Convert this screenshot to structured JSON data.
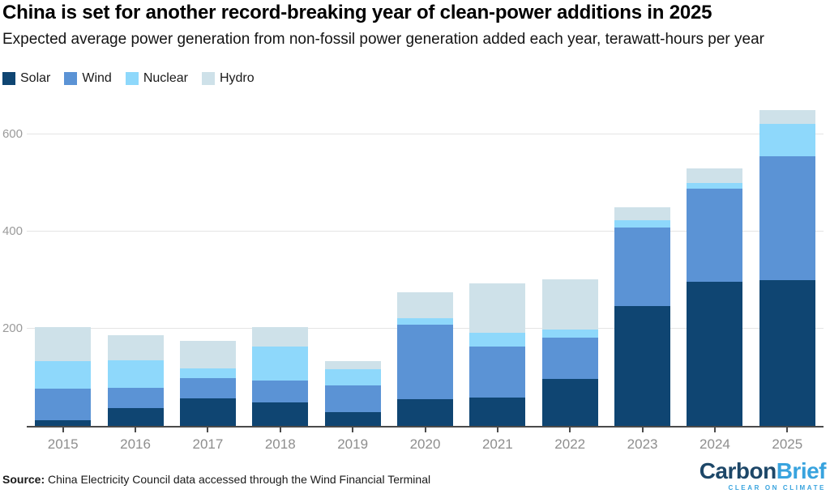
{
  "header": {
    "title": "China is set for another record-breaking year of clean-power additions in 2025",
    "subtitle": "Expected average power generation from non-fossil power generation added each year, terawatt-hours per year"
  },
  "chart_data": {
    "type": "bar",
    "stacked": true,
    "title": "China is set for another record-breaking year of clean-power additions in 2025",
    "xlabel": "",
    "ylabel": "terawatt-hours per year",
    "categories": [
      "2015",
      "2016",
      "2017",
      "2018",
      "2019",
      "2020",
      "2021",
      "2022",
      "2023",
      "2024",
      "2025"
    ],
    "series": [
      {
        "name": "Solar",
        "color": "#0f4572",
        "values": [
          12,
          36,
          57,
          48,
          28,
          55,
          58,
          97,
          246,
          296,
          300
        ]
      },
      {
        "name": "Wind",
        "color": "#5b93d5",
        "values": [
          64,
          42,
          41,
          46,
          55,
          154,
          106,
          84,
          162,
          192,
          255
        ]
      },
      {
        "name": "Nuclear",
        "color": "#8ed8fb",
        "values": [
          57,
          57,
          20,
          70,
          33,
          12,
          28,
          18,
          15,
          12,
          66
        ]
      },
      {
        "name": "Hydro",
        "color": "#cee1e9",
        "values": [
          71,
          52,
          57,
          39,
          18,
          54,
          101,
          103,
          27,
          30,
          29
        ]
      }
    ],
    "totals": [
      204,
      187,
      175,
      203,
      134,
      275,
      293,
      302,
      450,
      530,
      650
    ],
    "yticks": [
      200,
      400,
      600
    ],
    "ylim": [
      0,
      660
    ],
    "grid": true,
    "legend_position": "top-left"
  },
  "footer": {
    "source_label": "Source:",
    "source_text": "China Electricity Council data accessed through the Wind Financial Terminal",
    "logo": {
      "part1": "Carbon",
      "part2": "Brief",
      "tagline": "CLEAR ON CLIMATE",
      "navy": "#1d4768",
      "blue": "#38a3de"
    }
  },
  "style": {
    "axis_color": "#4a4a4a",
    "grid_color": "#e4e4e4",
    "ytick_label_color": "#9a9a9a",
    "xtick_label_color": "#8e8e8e"
  }
}
